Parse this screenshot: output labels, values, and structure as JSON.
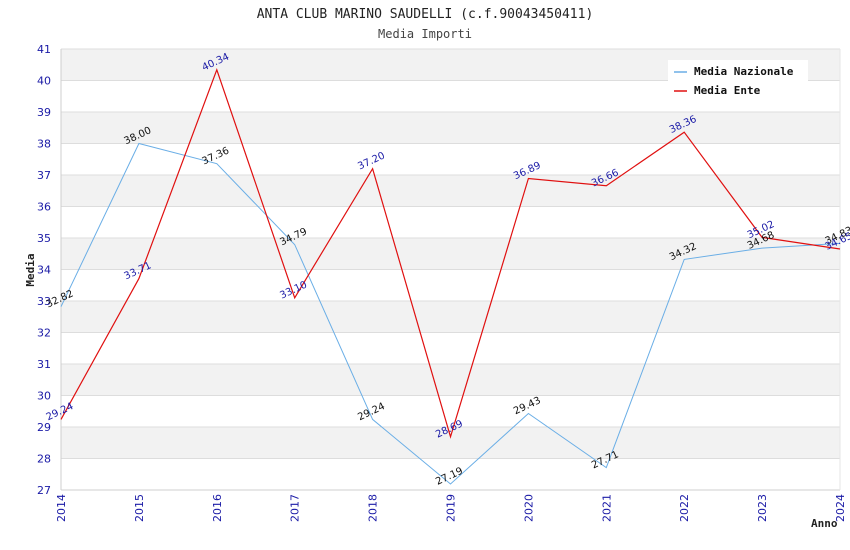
{
  "colors": {
    "nazionale": "#6aaee6",
    "ente": "#e01010",
    "band": "#f2f2f2",
    "grid": "#dddddd",
    "tick": "#1a1aa6"
  },
  "chart_data": {
    "type": "line",
    "title": "ANTA CLUB MARINO SAUDELLI (c.f.90043450411)",
    "subtitle": "Media Importi",
    "xlabel": "Anno",
    "ylabel": "Media",
    "ylim": [
      27,
      41
    ],
    "yticks": [
      "27",
      "28",
      "29",
      "30",
      "31",
      "32",
      "33",
      "34",
      "35",
      "36",
      "37",
      "38",
      "39",
      "40",
      "41"
    ],
    "x": [
      "2014",
      "2015",
      "2016",
      "2017",
      "2018",
      "2019",
      "2020",
      "2021",
      "2022",
      "2023",
      "2024"
    ],
    "legend_position": "top-right",
    "series": [
      {
        "key": "nazionale",
        "name": "Media Nazionale",
        "values": [
          32.82,
          38.0,
          37.36,
          34.79,
          29.24,
          27.19,
          29.43,
          27.71,
          34.32,
          34.68,
          34.83
        ],
        "labels": [
          "32.82",
          "38.00",
          "37.36",
          "34.79",
          "29.24",
          "27.19",
          "29.43",
          "27.71",
          "34.32",
          "34.68",
          "34.83"
        ]
      },
      {
        "key": "ente",
        "name": "Media Ente",
        "values": [
          29.24,
          33.71,
          40.34,
          33.1,
          37.2,
          28.69,
          36.89,
          36.66,
          38.36,
          35.02,
          34.65
        ],
        "labels": [
          "29.24",
          "33.71",
          "40.34",
          "33.10",
          "37.20",
          "28.69",
          "36.89",
          "36.66",
          "38.36",
          "35.02",
          "34.65"
        ]
      }
    ]
  }
}
